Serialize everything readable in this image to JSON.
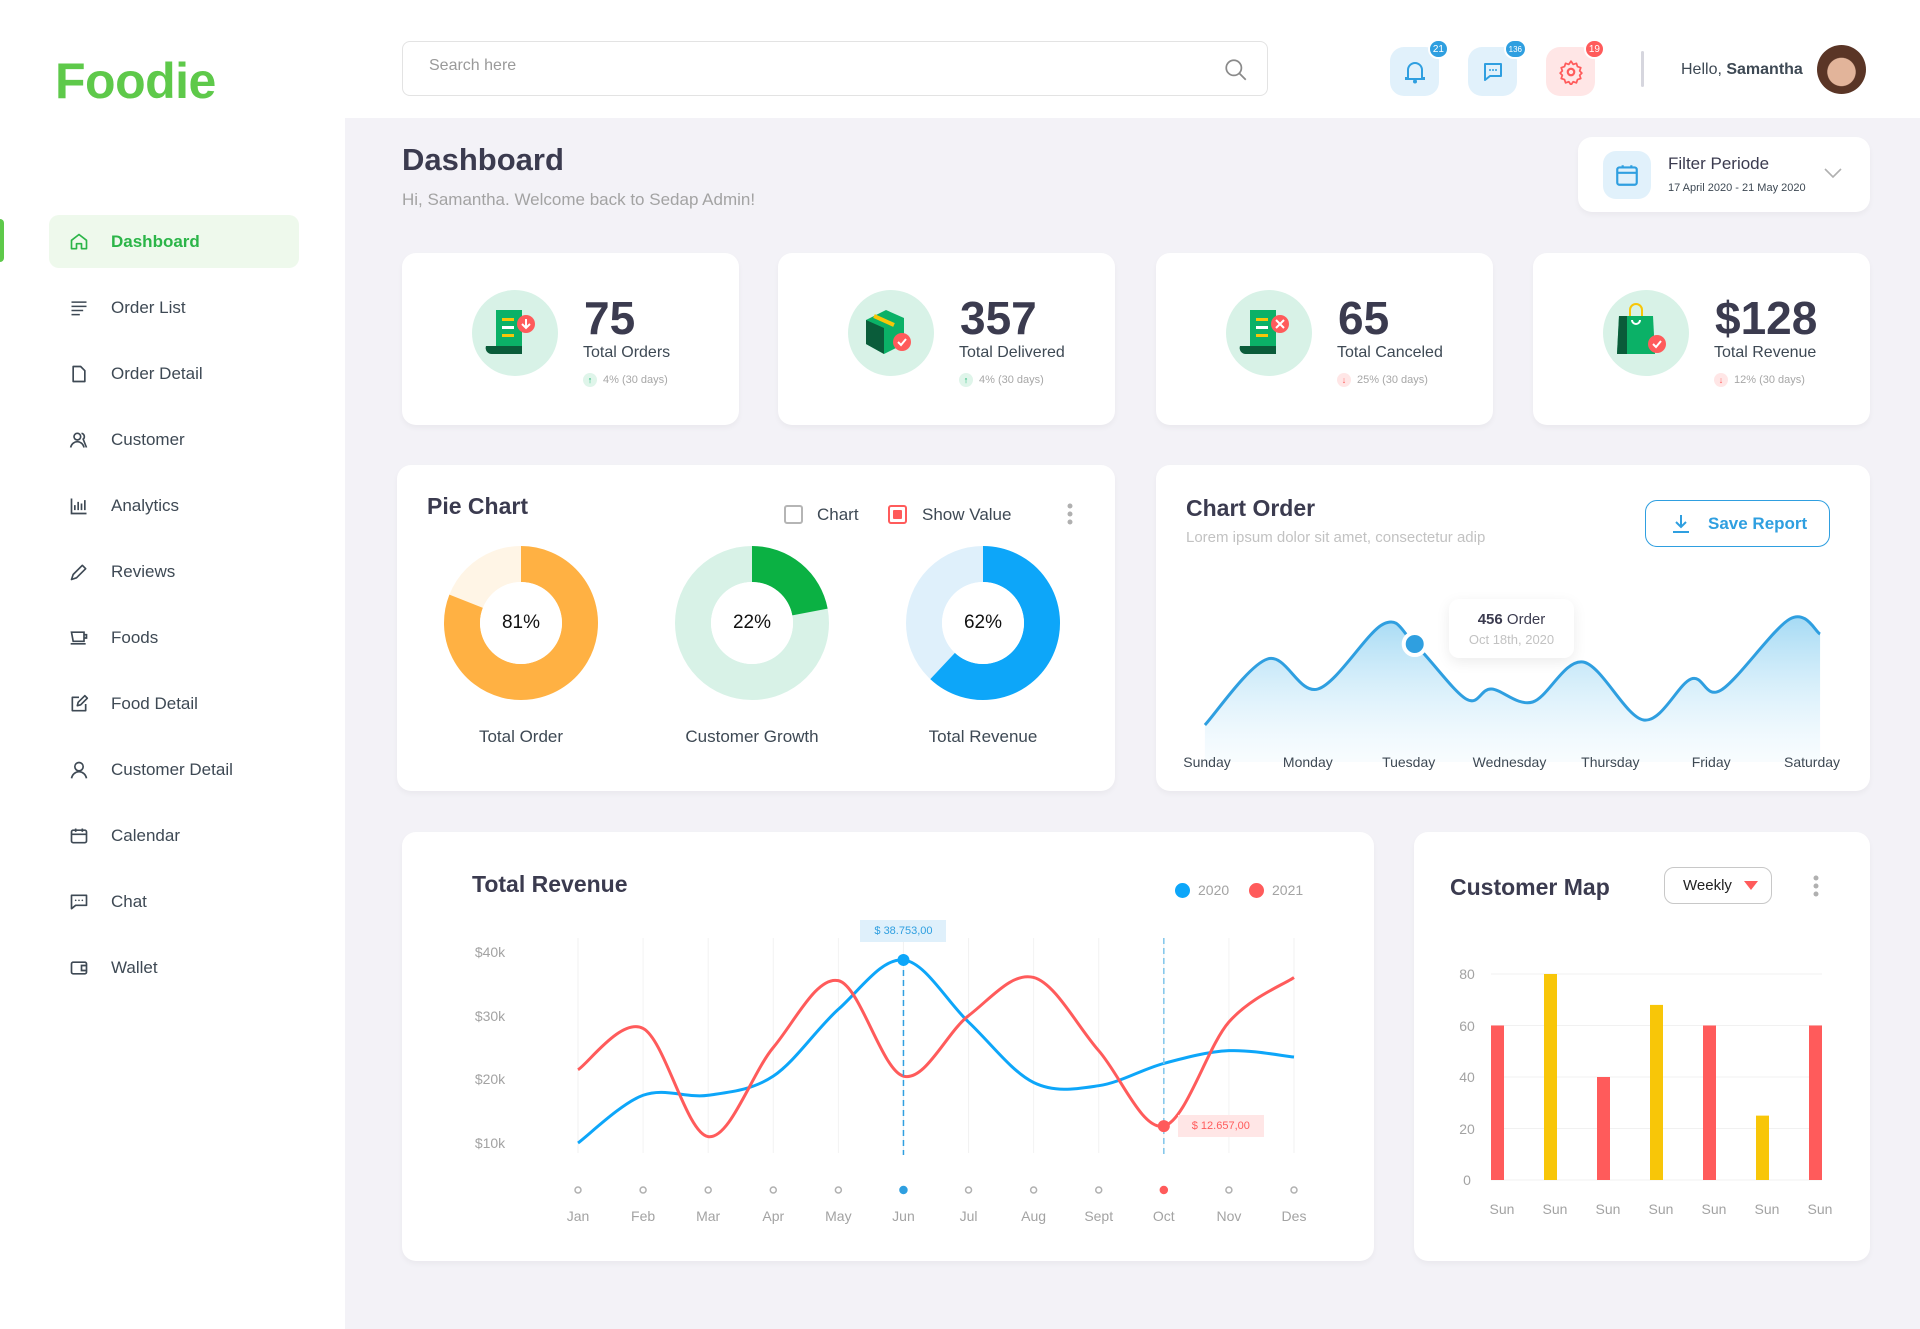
{
  "app": {
    "logo": "Foodie"
  },
  "sidebar": {
    "items": [
      {
        "label": "Dashboard",
        "icon": "home-icon",
        "active": true
      },
      {
        "label": "Order List",
        "icon": "list-icon"
      },
      {
        "label": "Order Detail",
        "icon": "document-icon"
      },
      {
        "label": "Customer",
        "icon": "users-icon"
      },
      {
        "label": "Analytics",
        "icon": "bar-chart-icon"
      },
      {
        "label": "Reviews",
        "icon": "pencil-icon"
      },
      {
        "label": "Foods",
        "icon": "cup-icon"
      },
      {
        "label": "Food Detail",
        "icon": "edit-icon"
      },
      {
        "label": "Customer Detail",
        "icon": "user-icon"
      },
      {
        "label": "Calendar",
        "icon": "calendar-icon"
      },
      {
        "label": "Chat",
        "icon": "chat-icon"
      },
      {
        "label": "Wallet",
        "icon": "wallet-icon"
      }
    ]
  },
  "header": {
    "search_placeholder": "Search here",
    "notifications": {
      "count": "21",
      "color": "#2f9fe0"
    },
    "messages": {
      "count": "136",
      "color": "#2f9fe0"
    },
    "settings": {
      "count": "19",
      "color": "#ff5b5b"
    },
    "greeting": "Hello,",
    "user_name": "Samantha"
  },
  "page": {
    "title": "Dashboard",
    "subtitle": "Hi, Samantha. Welcome back  to Sedap Admin!",
    "filter": {
      "label": "Filter Periode",
      "range": "17 April 2020 - 21 May 2020"
    }
  },
  "stats": [
    {
      "value": "75",
      "label": "Total Orders",
      "trend": "4% (30 days)",
      "direction": "up"
    },
    {
      "value": "357",
      "label": "Total Delivered",
      "trend": "4% (30 days)",
      "direction": "up"
    },
    {
      "value": "65",
      "label": "Total Canceled",
      "trend": "25% (30 days)",
      "direction": "down"
    },
    {
      "value": "$128",
      "label": "Total Revenue",
      "trend": "12% (30 days)",
      "direction": "down"
    }
  ],
  "pie_card": {
    "title": "Pie Chart",
    "chart_toggle": {
      "label": "Chart",
      "checked": false
    },
    "show_value_toggle": {
      "label": "Show Value",
      "checked": true
    }
  },
  "chart_order_card": {
    "title": "Chart Order",
    "subtitle": "Lorem ipsum dolor sit amet, consectetur adip",
    "save_label": "Save Report",
    "tooltip": {
      "value": "456",
      "unit": "Order",
      "date": "Oct 18th, 2020"
    }
  },
  "revenue_card": {
    "title": "Total Revenue"
  },
  "customer_map_card": {
    "title": "Customer Map",
    "period": "Weekly"
  },
  "chart_data": [
    {
      "type": "pie",
      "charts": [
        {
          "label": "Total Order",
          "value": 81,
          "display": "81%",
          "color": "#ffb143",
          "track": "#fff5e6"
        },
        {
          "label": "Customer Growth",
          "value": 22,
          "display": "22%",
          "color": "#0bb143",
          "track": "#d8f2e7"
        },
        {
          "label": "Total Revenue",
          "value": 62,
          "display": "62%",
          "color": "#0da6f9",
          "track": "#dff0fb"
        }
      ]
    },
    {
      "type": "area",
      "categories": [
        "Sunday",
        "Monday",
        "Tuesday",
        "Wednesday",
        "Thursday",
        "Friday",
        "Saturday"
      ],
      "points": [
        [
          -0.1,
          17
        ],
        [
          0.6,
          83
        ],
        [
          1.1,
          53
        ],
        [
          1.75,
          118
        ],
        [
          2.06,
          98
        ],
        [
          2.57,
          43
        ],
        [
          2.82,
          53
        ],
        [
          3.23,
          40
        ],
        [
          3.73,
          80
        ],
        [
          4.33,
          22
        ],
        [
          4.8,
          63
        ],
        [
          5.1,
          52
        ],
        [
          5.78,
          123
        ],
        [
          6.08,
          108
        ]
      ],
      "highlight_index": 4,
      "color": "#2f9fe0"
    },
    {
      "type": "line",
      "categories": [
        "Jan",
        "Feb",
        "Mar",
        "Apr",
        "May",
        "Jun",
        "Jul",
        "Aug",
        "Sept",
        "Oct",
        "Nov",
        "Des"
      ],
      "yticks": [
        "$40k",
        "$30k",
        "$20k",
        "$10k"
      ],
      "ylim": [
        10,
        40
      ],
      "series": [
        {
          "name": "2020",
          "color": "#0da6f9",
          "values": [
            10,
            17.5,
            17.5,
            20.5,
            31,
            38.753,
            29,
            19.5,
            19,
            22.5,
            24.5,
            23.5
          ]
        },
        {
          "name": "2021",
          "color": "#ff5b5b",
          "values": [
            21.5,
            28,
            11,
            25,
            35.5,
            20.5,
            30,
            36,
            24.5,
            12.657,
            29,
            36
          ]
        }
      ],
      "annotations": [
        {
          "series": "2020",
          "month": "Jun",
          "label": "$ 38.753,00"
        },
        {
          "series": "2021",
          "month": "Oct",
          "label": "$ 12.657,00"
        }
      ]
    },
    {
      "type": "bar",
      "categories": [
        "Sun",
        "Sun",
        "Sun",
        "Sun",
        "Sun",
        "Sun",
        "Sun"
      ],
      "values": [
        60,
        80,
        40,
        68,
        60,
        25,
        60
      ],
      "colors": [
        "#ff5b5b",
        "#f8c608",
        "#ff5b5b",
        "#f8c608",
        "#ff5b5b",
        "#f8c608",
        "#ff5b5b"
      ],
      "yticks": [
        0,
        20,
        40,
        60,
        80
      ],
      "ylim": [
        0,
        80
      ]
    }
  ]
}
